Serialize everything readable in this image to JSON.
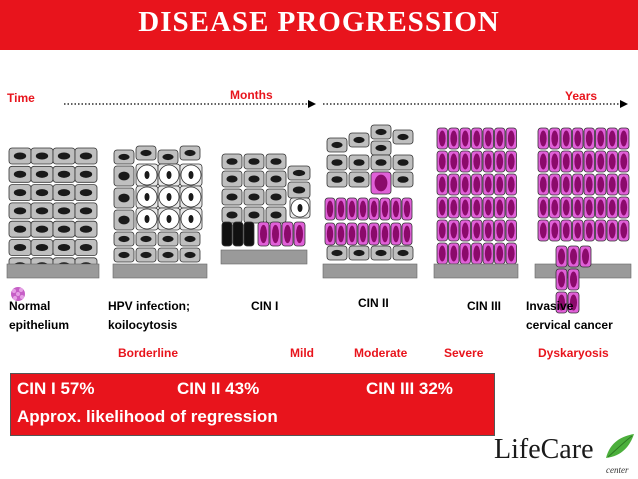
{
  "title": "DISEASE PROGRESSION",
  "timeline": {
    "start": "Time",
    "middle": "Months",
    "end": "Years"
  },
  "stages": [
    {
      "name": "Normal epithelium",
      "line1": "Normal",
      "line2": "epithelium"
    },
    {
      "name": "HPV infection; koilocytosis",
      "line1": "HPV infection;",
      "line2": "koilocytosis"
    },
    {
      "name": "CIN I",
      "line1": "CIN I",
      "line2": ""
    },
    {
      "name": "CIN II",
      "line1": "CIN II",
      "line2": ""
    },
    {
      "name": "CIN III",
      "line1": "CIN III",
      "line2": ""
    },
    {
      "name": "Invasive cervical cancer",
      "line1": "Invasive",
      "line2": "cervical cancer"
    }
  ],
  "severity": [
    "Borderline",
    "Mild",
    "Moderate",
    "Severe",
    "Dyskaryosis"
  ],
  "regression": {
    "cin1": "CIN I 57%",
    "cin2": "CIN II 43%",
    "cin3": "CIN III 32%",
    "caption": "Approx. likelihood of regression"
  },
  "logo": {
    "name": "LifeCare",
    "sub": "center"
  },
  "colors": {
    "title_bg": "#e8141c",
    "abnormal_cell": "#e060d8",
    "normal_cell": "#bfbfbf",
    "nucleus": "#1a1a1a"
  },
  "icons": [
    "virus-icon",
    "leaf-icon"
  ]
}
